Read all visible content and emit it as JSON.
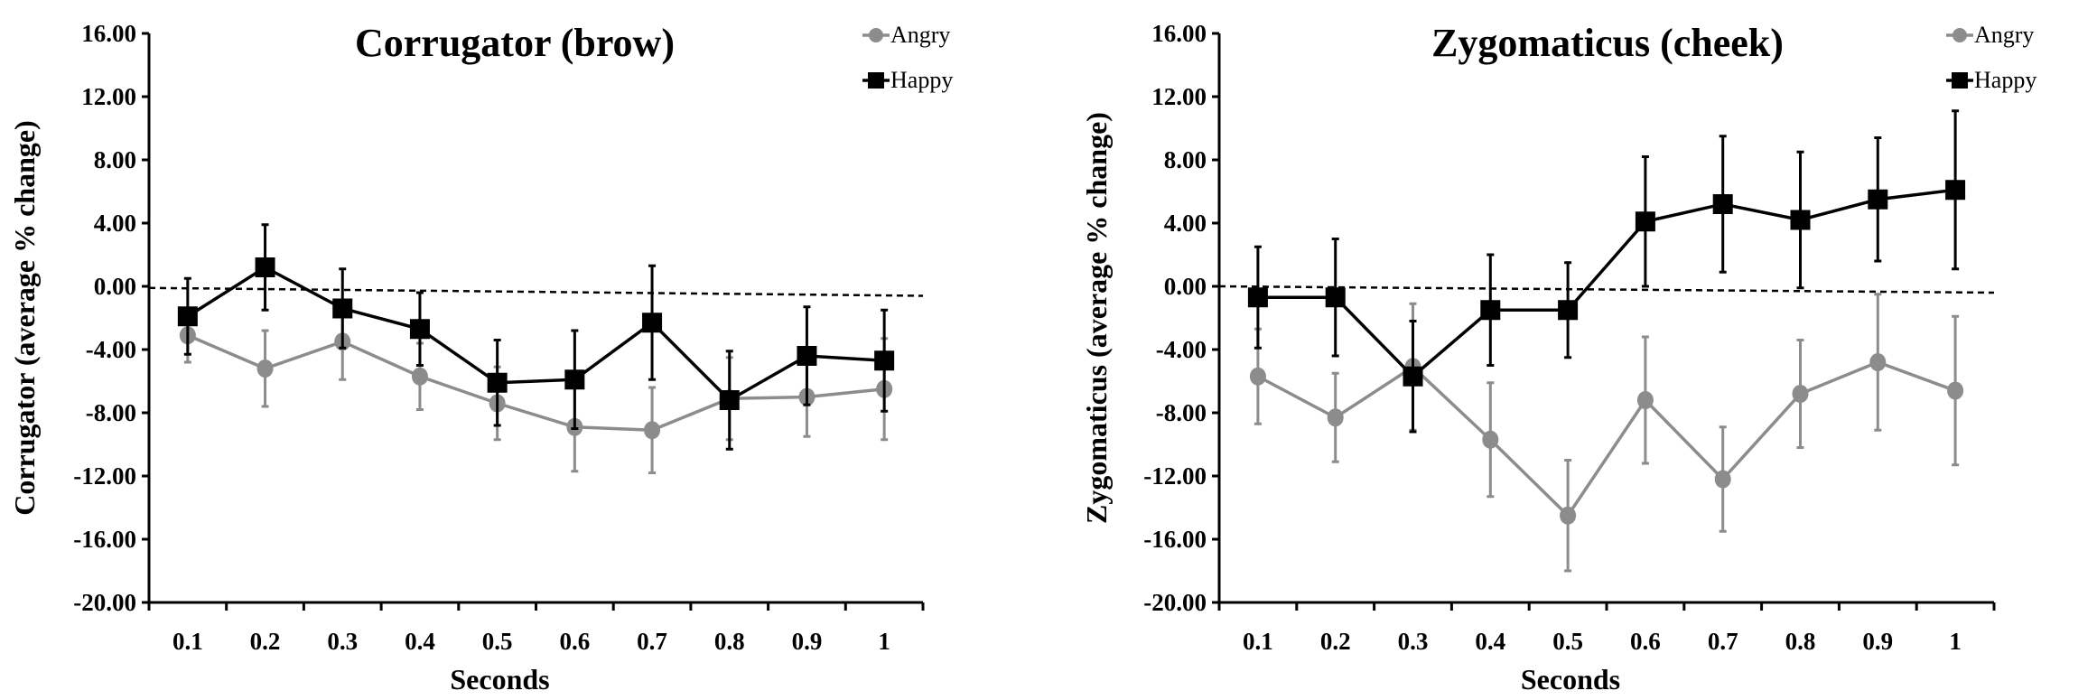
{
  "chart_data": [
    {
      "type": "line",
      "title": "Corrugator (brow)",
      "xlabel": "Seconds",
      "ylabel": "Corrugator (average % change)",
      "categories": [
        "0.1",
        "0.2",
        "0.3",
        "0.4",
        "0.5",
        "0.6",
        "0.7",
        "0.8",
        "0.9",
        "1"
      ],
      "ylim": [
        -20,
        16
      ],
      "yticks": [
        "16.00",
        "12.00",
        "8.00",
        "4.00",
        "0.00",
        "-4.00",
        "-8.00",
        "-12.00",
        "-16.00",
        "-20.00"
      ],
      "ytick_values": [
        16,
        12,
        8,
        4,
        0,
        -4,
        -8,
        -12,
        -16,
        -20
      ],
      "legend_position": "top-right",
      "reference_line": {
        "style": "dashed",
        "start": -0.1,
        "end": -0.6
      },
      "series": [
        {
          "name": "Angry",
          "color": "#8c8c8c",
          "marker": "circle",
          "values": [
            -3.1,
            -5.2,
            -3.5,
            -5.7,
            -7.4,
            -8.9,
            -9.1,
            -7.1,
            -7.0,
            -6.5
          ],
          "errors": [
            1.7,
            2.4,
            2.4,
            2.1,
            2.3,
            2.8,
            2.7,
            2.6,
            2.5,
            3.2
          ]
        },
        {
          "name": "Happy",
          "color": "#000000",
          "marker": "square",
          "values": [
            -1.9,
            1.2,
            -1.4,
            -2.7,
            -6.1,
            -5.9,
            -2.3,
            -7.2,
            -4.4,
            -4.7
          ],
          "errors": [
            2.4,
            2.7,
            2.5,
            2.3,
            2.7,
            3.1,
            3.6,
            3.1,
            3.1,
            3.2
          ]
        }
      ]
    },
    {
      "type": "line",
      "title": "Zygomaticus (cheek)",
      "xlabel": "Seconds",
      "ylabel": "Zygomaticus (average % change)",
      "categories": [
        "0.1",
        "0.2",
        "0.3",
        "0.4",
        "0.5",
        "0.6",
        "0.7",
        "0.8",
        "0.9",
        "1"
      ],
      "ylim": [
        -20,
        16
      ],
      "yticks": [
        "16.00",
        "12.00",
        "8.00",
        "4.00",
        "0.00",
        "-4.00",
        "-8.00",
        "-12.00",
        "-16.00",
        "-20.00"
      ],
      "ytick_values": [
        16,
        12,
        8,
        4,
        0,
        -4,
        -8,
        -12,
        -16,
        -20
      ],
      "legend_position": "top-right",
      "reference_line": {
        "style": "dashed",
        "start": 0.0,
        "end": -0.4
      },
      "series": [
        {
          "name": "Angry",
          "color": "#8c8c8c",
          "marker": "circle",
          "values": [
            -5.7,
            -8.3,
            -5.1,
            -9.7,
            -14.5,
            -7.2,
            -12.2,
            -6.8,
            -4.8,
            -6.6
          ],
          "errors": [
            3.0,
            2.8,
            4.0,
            3.6,
            3.5,
            4.0,
            3.3,
            3.4,
            4.3,
            4.7
          ]
        },
        {
          "name": "Happy",
          "color": "#000000",
          "marker": "square",
          "values": [
            -0.7,
            -0.7,
            -5.7,
            -1.5,
            -1.5,
            4.1,
            5.2,
            4.2,
            5.5,
            6.1
          ],
          "errors": [
            3.2,
            3.7,
            3.5,
            3.5,
            3.0,
            4.1,
            4.3,
            4.3,
            3.9,
            5.0
          ]
        }
      ]
    }
  ]
}
